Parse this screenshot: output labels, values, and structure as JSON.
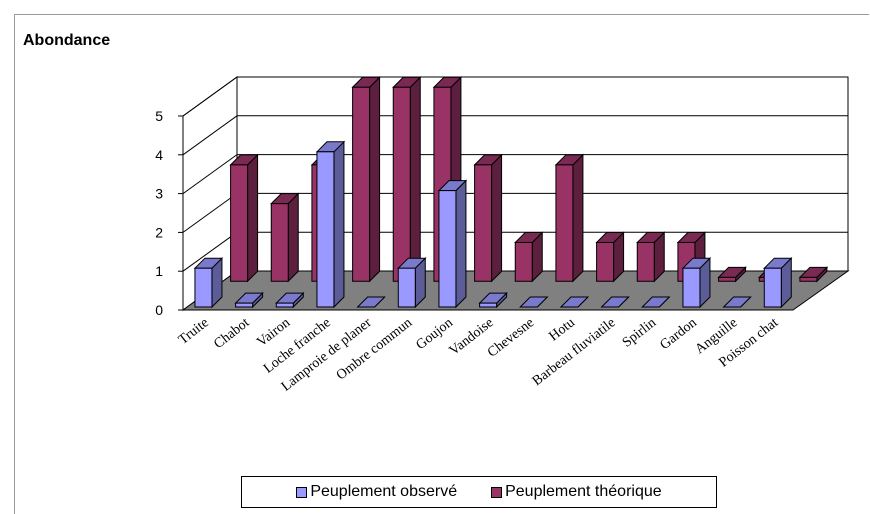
{
  "chart_data": {
    "type": "bar",
    "title": "Abondance",
    "categories": [
      "Truite",
      "Chabot",
      "Vairon",
      "Loche franche",
      "Lamproie de planer",
      "Ombre commun",
      "Goujon",
      "Vandoise",
      "Chevesne",
      "Hotu",
      "Barbeau fluviatile",
      "Spirlin",
      "Gardon",
      "Anguille",
      "Poisson chat"
    ],
    "series": [
      {
        "name": "Peuplement observé",
        "color": "#9999ff",
        "values": [
          1,
          0.1,
          0.1,
          4,
          0,
          1,
          3,
          0.1,
          0,
          0,
          0,
          0,
          1,
          0,
          1
        ]
      },
      {
        "name": "Peuplement théorique",
        "color": "#993366",
        "values": [
          3,
          2,
          3,
          5,
          5,
          5,
          3,
          1,
          3,
          1,
          1,
          1,
          0.1,
          0.1,
          0.1
        ]
      }
    ],
    "ylim": [
      0,
      5
    ],
    "yticks": [
      "0",
      "1",
      "2",
      "3",
      "4",
      "5"
    ],
    "grid": true,
    "legend": "bottom"
  }
}
